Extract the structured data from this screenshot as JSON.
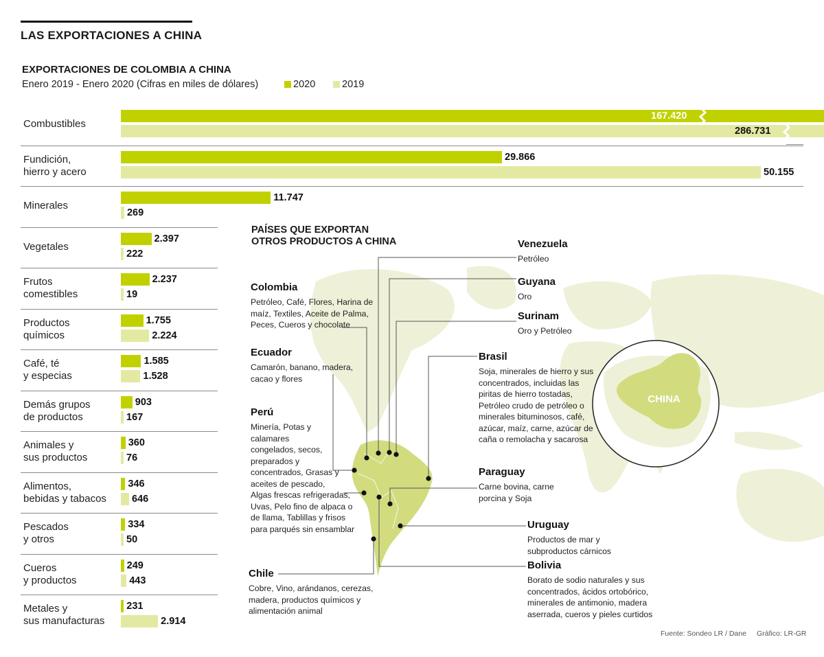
{
  "header": {
    "title": "LAS EXPORTACIONES A CHINA"
  },
  "chart_data": {
    "type": "bar",
    "orientation": "horizontal",
    "title": "EXPORTACIONES DE COLOMBIA A CHINA",
    "subtitle": "Enero 2019 - Enero 2020 (Cifras en miles de dólares)",
    "legend": "top-right",
    "categories": [
      "Combustibles",
      "Fundición,\nhierro y acero",
      "Minerales",
      "Vegetales",
      "Frutos\ncomestibles",
      "Productos\nquímicos",
      "Café, té\ny especias",
      "Demás grupos\nde productos",
      "Animales y\nsus productos",
      "Alimentos,\nbebidas y tabacos",
      "Pescados\ny otros",
      "Cueros\ny productos",
      "Metales y\nsus manufacturas"
    ],
    "series": [
      {
        "name": "2020",
        "color": "#c1d100",
        "values": [
          167420,
          29866,
          11747,
          2397,
          2237,
          1755,
          1585,
          903,
          360,
          346,
          334,
          249,
          231
        ],
        "labels": [
          "167.420",
          "29.866",
          "11.747",
          "2.397",
          "2.237",
          "1.755",
          "1.585",
          "903",
          "360",
          "346",
          "334",
          "249",
          "231"
        ]
      },
      {
        "name": "2019",
        "color": "#e3e9a2",
        "values": [
          286731,
          50155,
          269,
          222,
          19,
          2224,
          1528,
          167,
          76,
          646,
          50,
          443,
          2914
        ],
        "labels": [
          "286.731",
          "50.155",
          "269",
          "222",
          "19",
          "2.224",
          "1.528",
          "167",
          "76",
          "646",
          "50",
          "443",
          "2.914"
        ]
      }
    ],
    "axis_break": true
  },
  "map": {
    "title_line1": "PAÍSES QUE EXPORTAN",
    "title_line2": "OTROS PRODUCTOS A CHINA",
    "china_label": "CHINA",
    "countries": [
      {
        "name": "Venezuela",
        "lines": [
          "Petróleo"
        ]
      },
      {
        "name": "Guyana",
        "lines": [
          "Oro"
        ]
      },
      {
        "name": "Surinam",
        "lines": [
          "Oro y Petróleo"
        ]
      },
      {
        "name": "Colombia",
        "lines": [
          "Petróleo, Café, Flores, Harina de",
          "maíz, Textiles, Aceite de Palma,",
          "Peces, Cueros y chocolate"
        ]
      },
      {
        "name": "Ecuador",
        "lines": [
          "Camarón, banano, madera,",
          "cacao y flores"
        ]
      },
      {
        "name": "Brasil",
        "lines": [
          "Soja, minerales de hierro y sus",
          "concentrados, incluidas las",
          "piritas de hierro tostadas,",
          "Petróleo crudo de petróleo o",
          "minerales bituminosos, café,",
          "azúcar, maíz, carne, azúcar de",
          "caña o remolacha y sacarosa"
        ]
      },
      {
        "name": "Perú",
        "lines": [
          "Minería, Potas y",
          "calamares",
          "congelados, secos,",
          "preparados y",
          "concentrados, Grasas y",
          "aceites de pescado,",
          "Algas frescas refrigeradas,",
          "Uvas, Pelo fino de alpaca o",
          "de llama, Tablillas y frisos",
          "para parqués sin ensamblar"
        ]
      },
      {
        "name": "Paraguay",
        "lines": [
          "Carne bovina, carne",
          "porcina y Soja"
        ]
      },
      {
        "name": "Uruguay",
        "lines": [
          "Productos de mar y",
          "subproductos cárnicos"
        ]
      },
      {
        "name": "Chile",
        "lines": [
          "Cobre, Vino, arándanos, cerezas,",
          "madera, productos químicos y",
          "alimentación animal"
        ]
      },
      {
        "name": "Bolivia",
        "lines": [
          "Borato de sodio naturales y sus",
          "concentrados, ácidos ortobórico,",
          "minerales de antimonio, madera",
          "aserrada, cueros y pieles curtidos"
        ]
      }
    ]
  },
  "footer": {
    "source": "Fuente: Sondeo LR / Dane",
    "credit": "Gráfico: LR-GR"
  }
}
